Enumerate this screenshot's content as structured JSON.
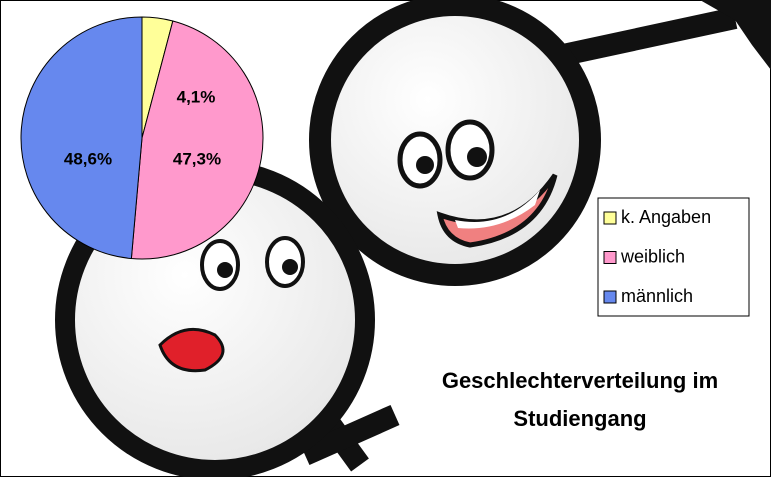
{
  "chart_data": {
    "type": "pie",
    "title": "Geschlechterverteilung im Studiengang",
    "categories": [
      "k. Angaben",
      "weiblich",
      "männlich"
    ],
    "values": [
      4.1,
      47.3,
      48.6
    ],
    "value_labels": [
      "4,1%",
      "47,3%",
      "48,6%"
    ],
    "colors": [
      "#ffff99",
      "#ff99cc",
      "#6688ee"
    ],
    "legend": "right"
  }
}
